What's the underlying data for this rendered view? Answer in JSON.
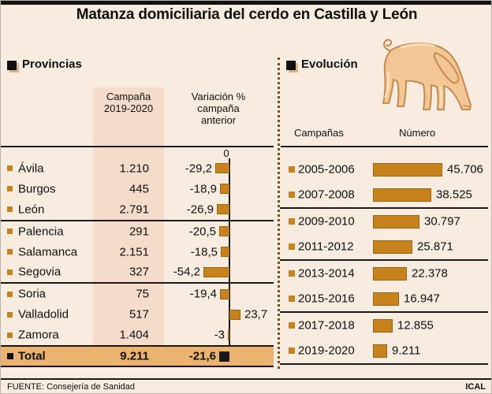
{
  "title": "Matanza domiciliaria del cerdo en Castilla y León",
  "colors": {
    "background": "#f8ebe0",
    "column_band": "#f5dcca",
    "total_band": "#eab470",
    "bar_orange": "#c8821d",
    "line_black": "#1a1a1a"
  },
  "provinces": {
    "section_title": "Provincias",
    "campaign_header": [
      "Campaña",
      "2019-2020"
    ],
    "variation_header": [
      "Variación %",
      "campaña",
      "anterior"
    ],
    "zero_label": "0",
    "rows": [
      {
        "name": "Ávila",
        "campaign": "1.210",
        "variation_label": "-29,2",
        "variation": -29.2
      },
      {
        "name": "Burgos",
        "campaign": "445",
        "variation_label": "-18,9",
        "variation": -18.9
      },
      {
        "name": "León",
        "campaign": "2.791",
        "variation_label": "-26,9",
        "variation": -26.9
      },
      {
        "name": "Palencia",
        "campaign": "291",
        "variation_label": "-20,5",
        "variation": -20.5
      },
      {
        "name": "Salamanca",
        "campaign": "2.151",
        "variation_label": "-18,5",
        "variation": -18.5
      },
      {
        "name": "Segovia",
        "campaign": "327",
        "variation_label": "-54,2",
        "variation": -54.2
      },
      {
        "name": "Soria",
        "campaign": "75",
        "variation_label": "-19,4",
        "variation": -19.4
      },
      {
        "name": "Valladolid",
        "campaign": "517",
        "variation_label": "23,7",
        "variation": 23.7
      },
      {
        "name": "Zamora",
        "campaign": "1.404",
        "variation_label": "-3",
        "variation": -3
      }
    ],
    "total": {
      "name": "Total",
      "campaign": "9.211",
      "variation_label": "-21,6",
      "variation": -21.6
    }
  },
  "evolution": {
    "section_title": "Evolución",
    "campaigns_header": "Campañas",
    "number_header": "Número",
    "rows": [
      {
        "campaign": "2005-2006",
        "number_label": "45.706",
        "number": 45706
      },
      {
        "campaign": "2007-2008",
        "number_label": "38.525",
        "number": 38525
      },
      {
        "campaign": "2009-2010",
        "number_label": "30.797",
        "number": 30797
      },
      {
        "campaign": "2011-2012",
        "number_label": "25.871",
        "number": 25871
      },
      {
        "campaign": "2013-2014",
        "number_label": "22.378",
        "number": 22378
      },
      {
        "campaign": "2015-2016",
        "number_label": "16.947",
        "number": 16947
      },
      {
        "campaign": "2017-2018",
        "number_label": "12.855",
        "number": 12855
      },
      {
        "campaign": "2019-2020",
        "number_label": "9.211",
        "number": 9211
      }
    ]
  },
  "footer": {
    "source": "FUENTE: Consejería de Sanidad",
    "credit": "ICAL"
  },
  "chart_data": [
    {
      "type": "bar",
      "orientation": "horizontal",
      "title": "Provincias — Campaña 2019-2020 y Variación % campaña anterior",
      "categories": [
        "Ávila",
        "Burgos",
        "León",
        "Palencia",
        "Salamanca",
        "Segovia",
        "Soria",
        "Valladolid",
        "Zamora",
        "Total"
      ],
      "series": [
        {
          "name": "Campaña 2019-2020",
          "values": [
            1210,
            445,
            2791,
            291,
            2151,
            327,
            75,
            517,
            1404,
            9211
          ]
        },
        {
          "name": "Variación % campaña anterior",
          "values": [
            -29.2,
            -18.9,
            -26.9,
            -20.5,
            -18.5,
            -54.2,
            -19.4,
            23.7,
            -3,
            -21.6
          ]
        }
      ],
      "axis_zero_label": "0",
      "grid": false,
      "legend_position": "none"
    },
    {
      "type": "bar",
      "orientation": "horizontal",
      "title": "Evolución",
      "xlabel": "Campañas",
      "ylabel": "Número",
      "categories": [
        "2005-2006",
        "2007-2008",
        "2009-2010",
        "2011-2012",
        "2013-2014",
        "2015-2016",
        "2017-2018",
        "2019-2020"
      ],
      "values": [
        45706,
        38525,
        30797,
        25871,
        22378,
        16947,
        12855,
        9211
      ],
      "xlim": [
        0,
        46000
      ],
      "grid": false,
      "legend_position": "none"
    }
  ]
}
